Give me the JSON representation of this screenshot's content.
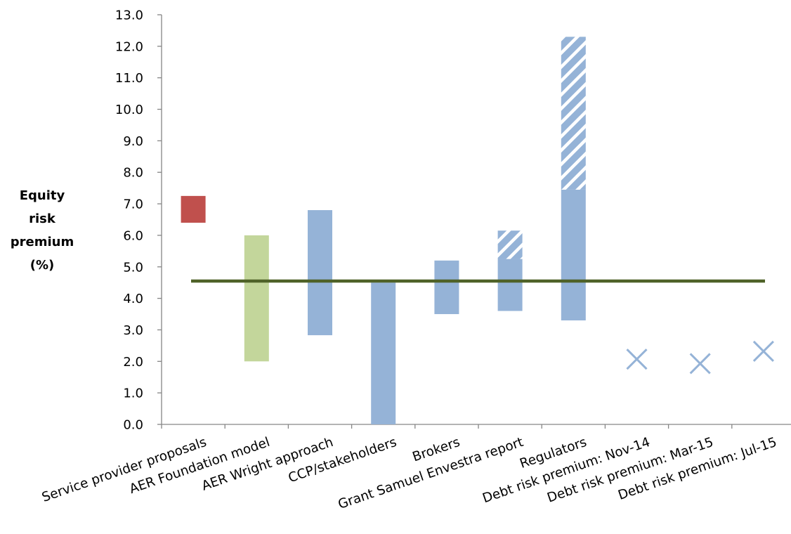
{
  "chart_data": {
    "type": "bar",
    "subtype": "floating-range",
    "ylabel_lines": [
      "Equity",
      "risk",
      "premium",
      "(%)"
    ],
    "ylim": [
      0,
      13
    ],
    "ytick_step": 1,
    "ytick_labels": [
      "0.0",
      "1.0",
      "2.0",
      "3.0",
      "4.0",
      "5.0",
      "6.0",
      "7.0",
      "8.0",
      "9.0",
      "10.0",
      "11.0",
      "12.0",
      "13.0"
    ],
    "grid": false,
    "legend": "none",
    "categories": [
      "Service provider proposals",
      "AER Foundation model",
      "AER Wright approach",
      "CCP/stakeholders",
      "Brokers",
      "Grant Samuel Envestra report",
      "Regulators",
      "Debt risk premium: Nov-14",
      "Debt risk premium: Mar-15",
      "Debt risk premium: Jul-15"
    ],
    "ranges": [
      {
        "category": "Service provider proposals",
        "low": 6.4,
        "high": 7.25,
        "color": "#c0504d"
      },
      {
        "category": "AER Foundation model",
        "low": 2.0,
        "high": 6.0,
        "color": "#c3d69b"
      },
      {
        "category": "AER Wright approach",
        "low": 2.83,
        "high": 6.8,
        "color": "#95b3d7"
      },
      {
        "category": "CCP/stakeholders",
        "low": 0.0,
        "high": 4.5,
        "color": "#95b3d7"
      },
      {
        "category": "Brokers",
        "low": 3.5,
        "high": 5.2,
        "color": "#95b3d7"
      },
      {
        "category": "Grant Samuel Envestra report",
        "low": 3.6,
        "high": 5.25,
        "color": "#95b3d7",
        "hatched_extension": {
          "low": 5.25,
          "high": 6.15
        }
      },
      {
        "category": "Regulators",
        "low": 3.3,
        "high": 7.45,
        "color": "#95b3d7",
        "hatched_extension": {
          "low": 7.45,
          "high": 12.3
        }
      }
    ],
    "markers": [
      {
        "category": "Debt risk premium: Nov-14",
        "value": 2.07,
        "symbol": "x",
        "color": "#95b3d7"
      },
      {
        "category": "Debt risk premium: Mar-15",
        "value": 1.93,
        "symbol": "x",
        "color": "#95b3d7"
      },
      {
        "category": "Debt risk premium: Jul-15",
        "value": 2.32,
        "symbol": "x",
        "color": "#95b3d7"
      }
    ],
    "reference_line": {
      "value": 4.55,
      "color": "#4f6228"
    }
  }
}
